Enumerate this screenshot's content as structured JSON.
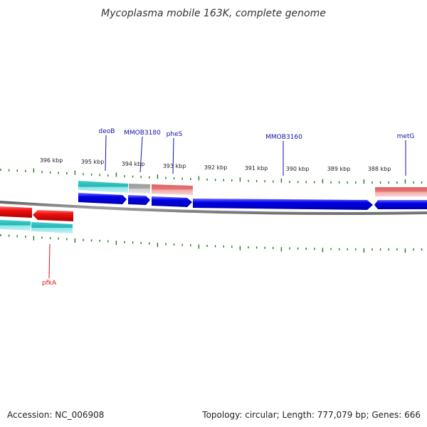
{
  "title": "Mycoplasma mobile 163K, complete genome",
  "footer": {
    "accession": "Accession: NC_006908",
    "summary": "Topology: circular; Length: 777,079 bp; Genes: 666"
  },
  "ticks": {
    "labels": [
      "396 kbp",
      "395 kbp",
      "394 kbp",
      "393 kbp",
      "392 kbp",
      "391 kbp",
      "390 kbp",
      "389 kbp",
      "388 kbp"
    ]
  },
  "genes": [
    {
      "name": "deoB",
      "strand": "top"
    },
    {
      "name": "MMOB3180",
      "strand": "top"
    },
    {
      "name": "pheS",
      "strand": "top"
    },
    {
      "name": "MMOB3160",
      "strand": "top"
    },
    {
      "name": "metG",
      "strand": "top"
    },
    {
      "name": "pfkA",
      "strand": "bottom"
    }
  ],
  "colors": {
    "cds_forward": "#0000e6",
    "cds_reverse": "#ee1111",
    "feature_cyan": "#22bbbb",
    "feature_gray": "#aaaaaa",
    "feature_pink": "#e87878",
    "tick": "#1a7a1a",
    "backbone": "#888888",
    "label_top": "#1010a8",
    "label_bottom": "#dd1111"
  }
}
